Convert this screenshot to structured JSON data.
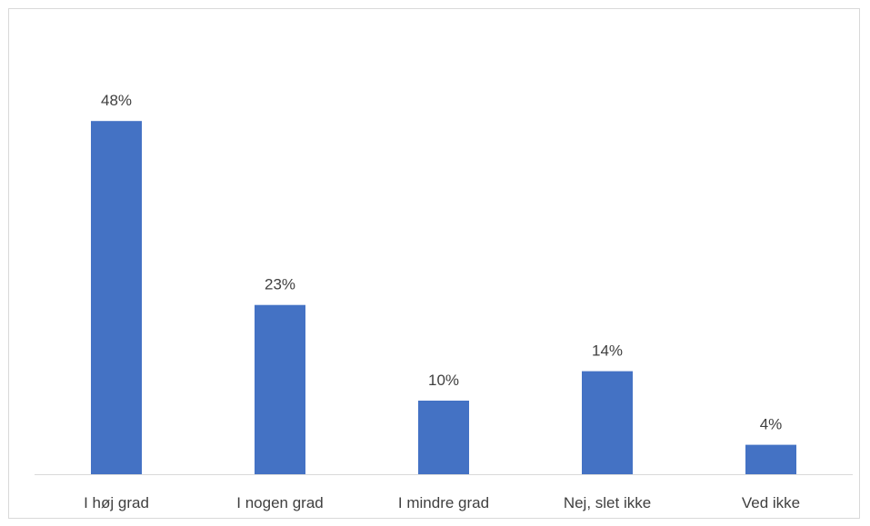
{
  "chart_data": {
    "type": "bar",
    "categories": [
      "I høj grad",
      "I nogen grad",
      "I mindre grad",
      "Nej, slet ikke",
      "Ved ikke"
    ],
    "values": [
      48,
      23,
      10,
      14,
      4
    ],
    "data_labels": [
      "48%",
      "23%",
      "10%",
      "14%",
      "4%"
    ],
    "unit": "%",
    "ylim": [
      0,
      60
    ],
    "grid": false,
    "legend": "none",
    "bar_color": "#4472c4",
    "title": "",
    "xlabel": "",
    "ylabel": ""
  }
}
